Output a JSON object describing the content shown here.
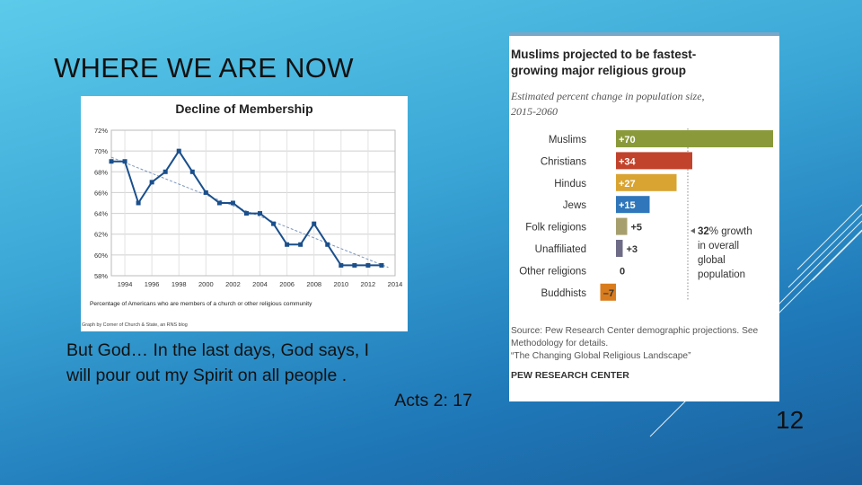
{
  "slide": {
    "title": "WHERE WE ARE NOW",
    "caption_line1": "But God…   In the last days, God says, I",
    "caption_line2": "will pour out my Spirit on all people .",
    "caption_ref": "Acts 2: 17",
    "slide_number": "12"
  },
  "chart_data": [
    {
      "type": "line",
      "title": "Decline of Membership",
      "xlabel": "Percentage of Americans who are members of a church or other religious community",
      "ylabel": "",
      "x": [
        1993,
        1994,
        1995,
        1996,
        1997,
        1998,
        1999,
        2000,
        2001,
        2002,
        2003,
        2004,
        2005,
        2006,
        2007,
        2008,
        2009,
        2010,
        2011,
        2012,
        2013
      ],
      "series": [
        {
          "values": [
            69,
            69,
            65,
            67,
            68,
            70,
            68,
            66,
            65,
            65,
            64,
            64,
            63,
            61,
            61,
            63,
            61,
            59,
            59,
            59,
            59
          ]
        }
      ],
      "trendline": [
        69.4,
        58.8
      ],
      "xticks": [
        "1994",
        "1996",
        "1998",
        "2000",
        "2002",
        "2004",
        "2006",
        "2008",
        "2010",
        "2012",
        "2014"
      ],
      "yticks": [
        "72%",
        "70%",
        "68%",
        "66%",
        "64%",
        "62%",
        "60%",
        "58%"
      ],
      "xlim": [
        1993,
        2014
      ],
      "ylim": [
        58,
        72
      ],
      "grid": true,
      "source": "Graph by Corner of Church & State, an RNS blog",
      "colors": {
        "line": "#1a4f8c",
        "trend": "#7a96c2"
      }
    },
    {
      "type": "bar",
      "title": "Muslims projected to be fastest-growing major religious group",
      "subtitle": "Estimated percent change in population size, 2015-2060",
      "categories": [
        "Muslims",
        "Christians",
        "Hindus",
        "Jews",
        "Folk religions",
        "Unaffiliated",
        "Other religions",
        "Buddhists"
      ],
      "values": [
        70,
        34,
        27,
        15,
        5,
        3,
        0,
        -7
      ],
      "value_labels": [
        "+70",
        "+34",
        "+27",
        "+15",
        "+5",
        "+3",
        "0",
        "–7"
      ],
      "colors": [
        "#8a9a3b",
        "#c2432c",
        "#d9a432",
        "#2f77ba",
        "#a69f6d",
        "#6e6b87",
        "#999999",
        "#d97c1e"
      ],
      "reference": {
        "value": 32,
        "label_bold": "32",
        "label_lines": [
          "% growth",
          "in overall",
          "global",
          "population"
        ]
      },
      "source_lines": [
        "Source: Pew Research Center demographic projections. See",
        "Methodology for details.",
        "“The Changing Global Religious Landscape”"
      ],
      "publisher": "PEW RESEARCH CENTER"
    }
  ]
}
